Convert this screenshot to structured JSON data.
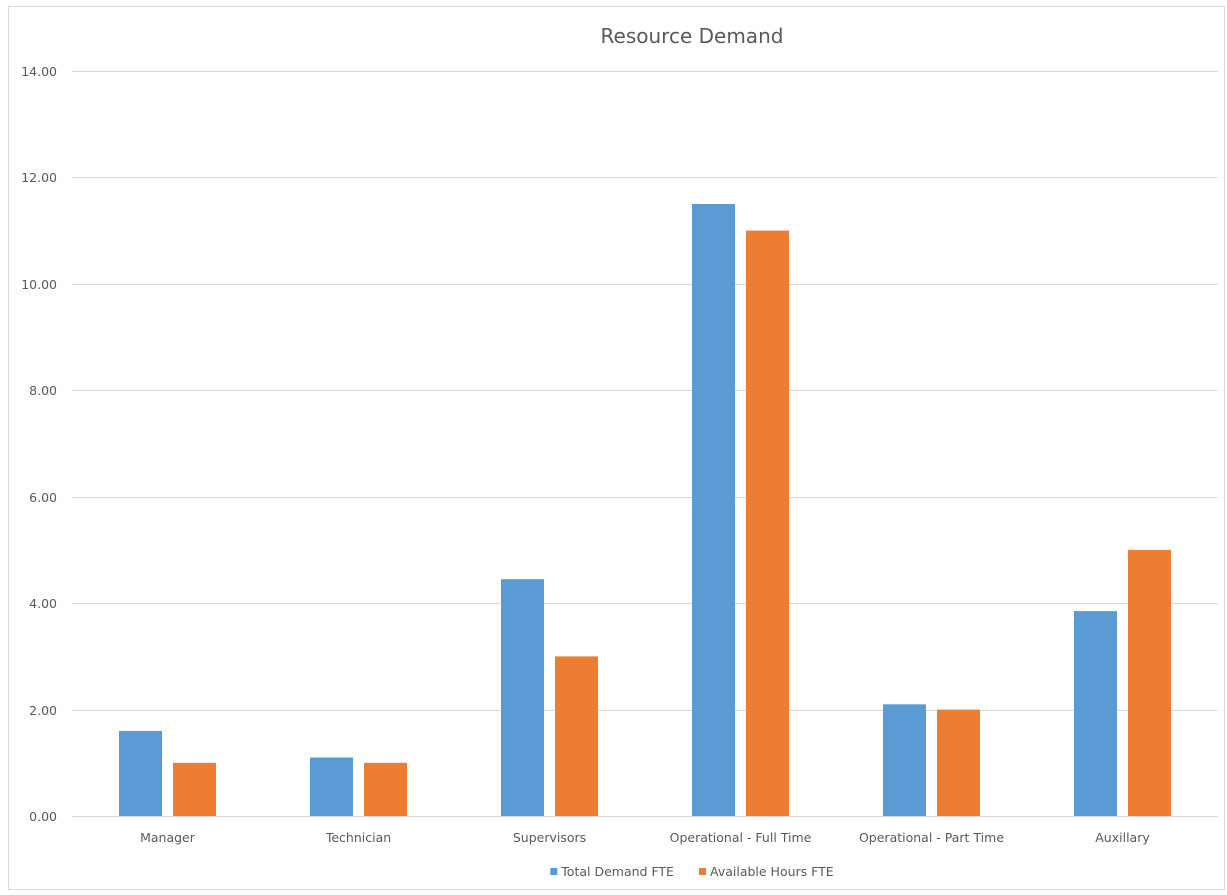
{
  "chart_data": {
    "type": "bar",
    "title": "Resource Demand",
    "xlabel": "",
    "ylabel": "",
    "categories": [
      "Manager",
      "Technician",
      "Supervisors",
      "Operational - Full Time",
      "Operational - Part Time",
      "Auxillary"
    ],
    "series": [
      {
        "name": "Total Demand FTE",
        "color": "#5b9bd5",
        "values": [
          1.6,
          1.1,
          4.45,
          11.5,
          2.1,
          3.85
        ]
      },
      {
        "name": "Available Hours FTE",
        "color": "#ed7d31",
        "values": [
          1.0,
          1.0,
          3.0,
          11.0,
          2.0,
          5.0
        ]
      }
    ],
    "ylim": [
      0,
      14
    ],
    "y_ticks": [
      "0.00",
      "2.00",
      "4.00",
      "6.00",
      "8.00",
      "10.00",
      "12.00",
      "14.00"
    ],
    "grid": true,
    "legend": "bottom",
    "colors": {
      "gridline": "#d9d9d9",
      "text": "#595959"
    }
  }
}
